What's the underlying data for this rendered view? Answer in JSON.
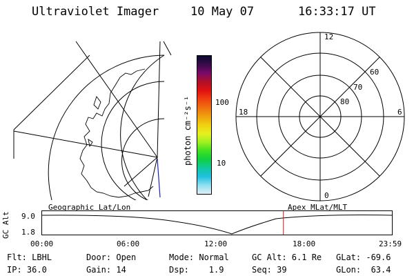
{
  "header": {
    "title": "Ultraviolet Imager",
    "date": "10 May 07",
    "time": "16:33:17 UT"
  },
  "colorbar": {
    "unit_label": "photon cm⁻²s⁻¹",
    "ticks": [
      "100",
      "10"
    ],
    "colors": [
      "#0a0a2e",
      "#3a0a4a",
      "#7a0a6a",
      "#b0102a",
      "#e01010",
      "#f04010",
      "#f07010",
      "#f0a010",
      "#f0d010",
      "#e8f020",
      "#a0f020",
      "#40e020",
      "#10d040",
      "#10c8a0",
      "#20c0e0",
      "#90e0f0",
      "#e0f0f8"
    ]
  },
  "polar_grid": {
    "mlt_labels": [
      "12",
      "18",
      "6",
      "0"
    ],
    "lat_labels": [
      "60",
      "70",
      "80"
    ]
  },
  "timeline": {
    "y_axis_label": "GC Alt",
    "y_ticks": [
      "9.0",
      "1.8"
    ],
    "left_caption": "Geographic Lat/Lon",
    "right_caption": "Apex MLat/MLT",
    "x_ticks": [
      "00:00",
      "06:00",
      "12:00",
      "18:00",
      "23:59"
    ],
    "current_time_fraction": 0.6898
  },
  "footer": {
    "flt": "Flt: LBHL",
    "ip": "IP: 36.0",
    "door": "Door: Open",
    "gain": "Gain: 14",
    "mode": "Mode: Normal",
    "dsp": "Dsp:    1.9",
    "gc_alt": "GC Alt: 6.1 Re",
    "seq": "Seq: 39",
    "glat": "GLat: -69.6",
    "glon": "GLon:  63.4"
  }
}
